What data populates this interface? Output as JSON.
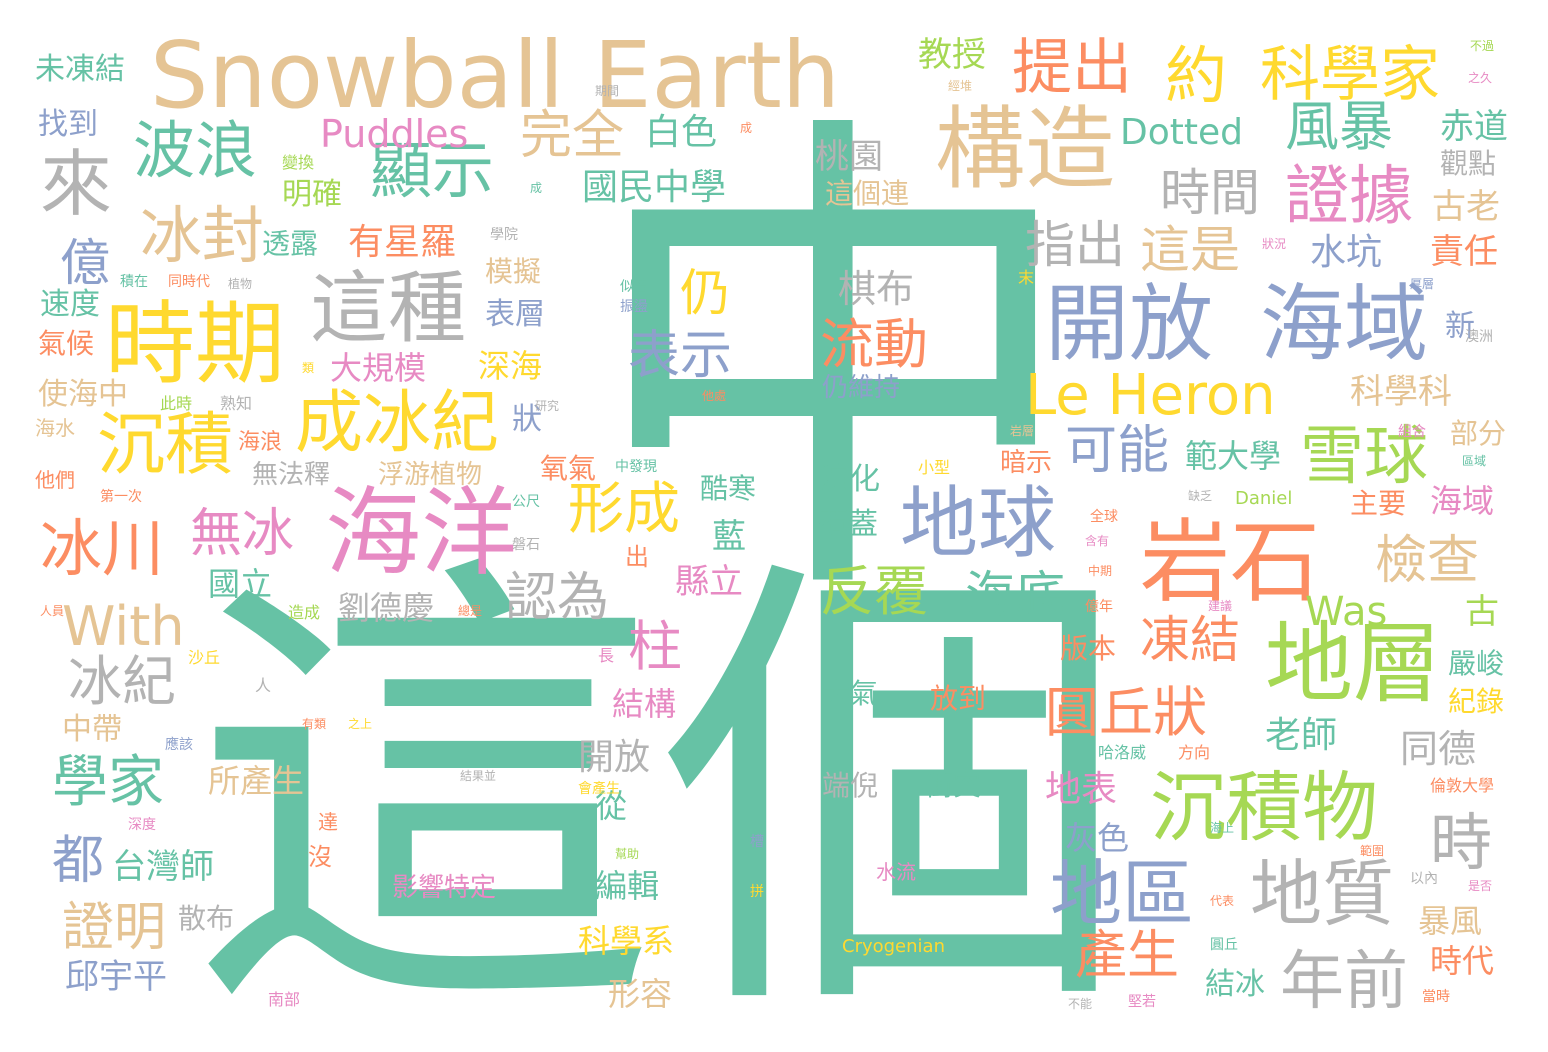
{
  "title": "",
  "palette": {
    "teal": "#66c2a5",
    "orange": "#fc8d62",
    "blue": "#8da0cb",
    "pink": "#e78ac3",
    "green": "#a6d854",
    "yellow": "#ffd92f",
    "tan": "#e5c494",
    "gray": "#b3b3b3"
  },
  "words": [
    {
      "id": "w01",
      "text": "中"
    },
    {
      "id": "w02",
      "text": "這個"
    },
    {
      "id": "w03",
      "text": "Snowball Earth"
    },
    {
      "id": "w04",
      "text": "海洋"
    },
    {
      "id": "w05",
      "text": "時期"
    },
    {
      "id": "w06",
      "text": "構造"
    },
    {
      "id": "w07",
      "text": "開放"
    },
    {
      "id": "w08",
      "text": "海域"
    },
    {
      "id": "w09",
      "text": "地球"
    },
    {
      "id": "w10",
      "text": "岩石"
    },
    {
      "id": "w11",
      "text": "地層"
    },
    {
      "id": "w12",
      "text": "沉積物"
    },
    {
      "id": "w13",
      "text": "這種"
    },
    {
      "id": "w14",
      "text": "成冰紀"
    },
    {
      "id": "w15",
      "text": "沉積"
    },
    {
      "id": "w16",
      "text": "冰封"
    },
    {
      "id": "w17",
      "text": "波浪"
    },
    {
      "id": "w18",
      "text": "顯示"
    },
    {
      "id": "w19",
      "text": "來"
    },
    {
      "id": "w20",
      "text": "提出"
    },
    {
      "id": "w21",
      "text": "約"
    },
    {
      "id": "w22",
      "text": "科學家"
    },
    {
      "id": "w23",
      "text": "證據"
    },
    {
      "id": "w24",
      "text": "風暴"
    },
    {
      "id": "w25",
      "text": "Le Heron"
    },
    {
      "id": "w26",
      "text": "雪球"
    },
    {
      "id": "w27",
      "text": "地區"
    },
    {
      "id": "w28",
      "text": "地質"
    },
    {
      "id": "w29",
      "text": "年前"
    },
    {
      "id": "w30",
      "text": "冰川"
    },
    {
      "id": "w31",
      "text": "無冰"
    },
    {
      "id": "w32",
      "text": "反覆"
    },
    {
      "id": "w33",
      "text": "表示"
    },
    {
      "id": "w34",
      "text": "流動"
    },
    {
      "id": "w35",
      "text": "形成"
    },
    {
      "id": "w36",
      "text": "學家"
    },
    {
      "id": "w37",
      "text": "With"
    },
    {
      "id": "w38",
      "text": "冰紀"
    },
    {
      "id": "w39",
      "text": "圓丘狀"
    },
    {
      "id": "w40",
      "text": "時"
    },
    {
      "id": "w41",
      "text": "億"
    },
    {
      "id": "w42",
      "text": "證明"
    },
    {
      "id": "w43",
      "text": "檢查"
    },
    {
      "id": "w44",
      "text": "海底"
    },
    {
      "id": "w45",
      "text": "認為"
    },
    {
      "id": "w46",
      "text": "凍結"
    },
    {
      "id": "w47",
      "text": "可能"
    },
    {
      "id": "w48",
      "text": "時間"
    },
    {
      "id": "w49",
      "text": "指出"
    },
    {
      "id": "w50",
      "text": "這是"
    },
    {
      "id": "w51",
      "text": "完全"
    },
    {
      "id": "w52",
      "text": "Puddles"
    },
    {
      "id": "w53",
      "text": "Dotted"
    },
    {
      "id": "w54",
      "text": "Was"
    },
    {
      "id": "w55",
      "text": "仍"
    },
    {
      "id": "w56",
      "text": "柱"
    },
    {
      "id": "w57",
      "text": "都"
    },
    {
      "id": "w58",
      "text": "產生"
    },
    {
      "id": "w59",
      "text": "國民中學"
    },
    {
      "id": "w60",
      "text": "白色"
    },
    {
      "id": "w61",
      "text": "桃園"
    },
    {
      "id": "w62",
      "text": "這個連"
    },
    {
      "id": "w63",
      "text": "棋布"
    },
    {
      "id": "w64",
      "text": "有星羅"
    },
    {
      "id": "w65",
      "text": "水坑"
    },
    {
      "id": "w66",
      "text": "責任"
    },
    {
      "id": "w67",
      "text": "赤道"
    },
    {
      "id": "w68",
      "text": "觀點"
    },
    {
      "id": "w69",
      "text": "古老"
    },
    {
      "id": "w70",
      "text": "教授"
    },
    {
      "id": "w71",
      "text": "未凍結"
    },
    {
      "id": "w72",
      "text": "找到"
    },
    {
      "id": "w73",
      "text": "明確"
    },
    {
      "id": "w74",
      "text": "透露"
    },
    {
      "id": "w75",
      "text": "速度"
    },
    {
      "id": "w76",
      "text": "氣候"
    },
    {
      "id": "w77",
      "text": "使海中"
    },
    {
      "id": "w78",
      "text": "海水"
    },
    {
      "id": "w79",
      "text": "他們"
    },
    {
      "id": "w80",
      "text": "表層"
    },
    {
      "id": "w81",
      "text": "模擬"
    },
    {
      "id": "w82",
      "text": "深海"
    },
    {
      "id": "w83",
      "text": "大規模"
    },
    {
      "id": "w84",
      "text": "狀"
    },
    {
      "id": "w85",
      "text": "海浪"
    },
    {
      "id": "w86",
      "text": "無法釋"
    },
    {
      "id": "w87",
      "text": "浮游植物"
    },
    {
      "id": "w88",
      "text": "氧氣"
    },
    {
      "id": "w89",
      "text": "酷寒"
    },
    {
      "id": "w90",
      "text": "藍"
    },
    {
      "id": "w91",
      "text": "縣立"
    },
    {
      "id": "w92",
      "text": "國立"
    },
    {
      "id": "w93",
      "text": "劉德慶"
    },
    {
      "id": "w94",
      "text": "演化"
    },
    {
      "id": "w95",
      "text": "覆蓋"
    },
    {
      "id": "w96",
      "text": "仍維持"
    },
    {
      "id": "w97",
      "text": "科學科"
    },
    {
      "id": "w98",
      "text": "範大學"
    },
    {
      "id": "w99",
      "text": "暗示"
    },
    {
      "id": "w100",
      "text": "部分"
    },
    {
      "id": "w101",
      "text": "海域"
    },
    {
      "id": "w102",
      "text": "主要"
    },
    {
      "id": "w103",
      "text": "古"
    },
    {
      "id": "w104",
      "text": "新"
    },
    {
      "id": "w105",
      "text": "版本"
    },
    {
      "id": "w106",
      "text": "老師"
    },
    {
      "id": "w107",
      "text": "同德"
    },
    {
      "id": "w108",
      "text": "嚴峻"
    },
    {
      "id": "w109",
      "text": "紀錄"
    },
    {
      "id": "w110",
      "text": "地表"
    },
    {
      "id": "w111",
      "text": "灰色"
    },
    {
      "id": "w112",
      "text": "暴風"
    },
    {
      "id": "w113",
      "text": "時代"
    },
    {
      "id": "w114",
      "text": "結冰"
    },
    {
      "id": "w115",
      "text": "中帶"
    },
    {
      "id": "w116",
      "text": "所產生"
    },
    {
      "id": "w117",
      "text": "開放"
    },
    {
      "id": "w118",
      "text": "結構"
    },
    {
      "id": "w119",
      "text": "從"
    },
    {
      "id": "w120",
      "text": "編輯"
    },
    {
      "id": "w121",
      "text": "科學系"
    },
    {
      "id": "w122",
      "text": "形容"
    },
    {
      "id": "w123",
      "text": "台灣師"
    },
    {
      "id": "w124",
      "text": "散布"
    },
    {
      "id": "w125",
      "text": "邱宇平"
    },
    {
      "id": "w126",
      "text": "影響特定"
    },
    {
      "id": "w127",
      "text": "大氣"
    },
    {
      "id": "w128",
      "text": "放到"
    },
    {
      "id": "w129",
      "text": "端倪"
    },
    {
      "id": "w130",
      "text": "衝突"
    },
    {
      "id": "w131",
      "text": "水流"
    },
    {
      "id": "w132",
      "text": "Cryogenian"
    },
    {
      "id": "w133",
      "text": "Daniel"
    },
    {
      "id": "w134",
      "text": "變換"
    },
    {
      "id": "w135",
      "text": "積在"
    },
    {
      "id": "w136",
      "text": "同時代"
    },
    {
      "id": "w137",
      "text": "植物"
    },
    {
      "id": "w138",
      "text": "此時"
    },
    {
      "id": "w139",
      "text": "熟知"
    },
    {
      "id": "w140",
      "text": "研究"
    },
    {
      "id": "w141",
      "text": "第一次"
    },
    {
      "id": "w142",
      "text": "學院"
    },
    {
      "id": "w143",
      "text": "類"
    },
    {
      "id": "w144",
      "text": "期間"
    },
    {
      "id": "w145",
      "text": "成"
    },
    {
      "id": "w146",
      "text": "成"
    },
    {
      "id": "w147",
      "text": "經堆"
    },
    {
      "id": "w148",
      "text": "之久"
    },
    {
      "id": "w149",
      "text": "不過"
    },
    {
      "id": "w150",
      "text": "狀況"
    },
    {
      "id": "w151",
      "text": "厚層"
    },
    {
      "id": "w152",
      "text": "澳洲"
    },
    {
      "id": "w153",
      "text": "組合"
    },
    {
      "id": "w154",
      "text": "區域"
    },
    {
      "id": "w155",
      "text": "岩層"
    },
    {
      "id": "w156",
      "text": "缺乏"
    },
    {
      "id": "w157",
      "text": "似曾"
    },
    {
      "id": "w158",
      "text": "振盪"
    },
    {
      "id": "w159",
      "text": "他處"
    },
    {
      "id": "w160",
      "text": "小型"
    },
    {
      "id": "w161",
      "text": "中發現"
    },
    {
      "id": "w162",
      "text": "公尺"
    },
    {
      "id": "w163",
      "text": "磐石"
    },
    {
      "id": "w164",
      "text": "全球"
    },
    {
      "id": "w165",
      "text": "含有"
    },
    {
      "id": "w166",
      "text": "中期"
    },
    {
      "id": "w167",
      "text": "億年"
    },
    {
      "id": "w168",
      "text": "建議"
    },
    {
      "id": "w169",
      "text": "倫敦大學"
    },
    {
      "id": "w170",
      "text": "哈洛威"
    },
    {
      "id": "w171",
      "text": "方向"
    },
    {
      "id": "w172",
      "text": "海上"
    },
    {
      "id": "w173",
      "text": "範圍"
    },
    {
      "id": "w174",
      "text": "以內"
    },
    {
      "id": "w175",
      "text": "是否"
    },
    {
      "id": "w176",
      "text": "代表"
    },
    {
      "id": "w177",
      "text": "圓丘"
    },
    {
      "id": "w178",
      "text": "不能"
    },
    {
      "id": "w179",
      "text": "堅若"
    },
    {
      "id": "w180",
      "text": "當時"
    },
    {
      "id": "w181",
      "text": "南部"
    },
    {
      "id": "w182",
      "text": "深度"
    },
    {
      "id": "w183",
      "text": "達"
    },
    {
      "id": "w184",
      "text": "沒"
    },
    {
      "id": "w185",
      "text": "應該"
    },
    {
      "id": "w186",
      "text": "有類"
    },
    {
      "id": "w187",
      "text": "之上"
    },
    {
      "id": "w188",
      "text": "結果並"
    },
    {
      "id": "w189",
      "text": "會產生"
    },
    {
      "id": "w190",
      "text": "幫助"
    },
    {
      "id": "w191",
      "text": "槽"
    },
    {
      "id": "w192",
      "text": "拼"
    },
    {
      "id": "w193",
      "text": "沙丘"
    },
    {
      "id": "w194",
      "text": "人"
    },
    {
      "id": "w195",
      "text": "人員"
    },
    {
      "id": "w196",
      "text": "造成"
    },
    {
      "id": "w197",
      "text": "總是"
    },
    {
      "id": "w198",
      "text": "長"
    },
    {
      "id": "w199",
      "text": "出"
    },
    {
      "id": "w200",
      "text": "末"
    }
  ]
}
